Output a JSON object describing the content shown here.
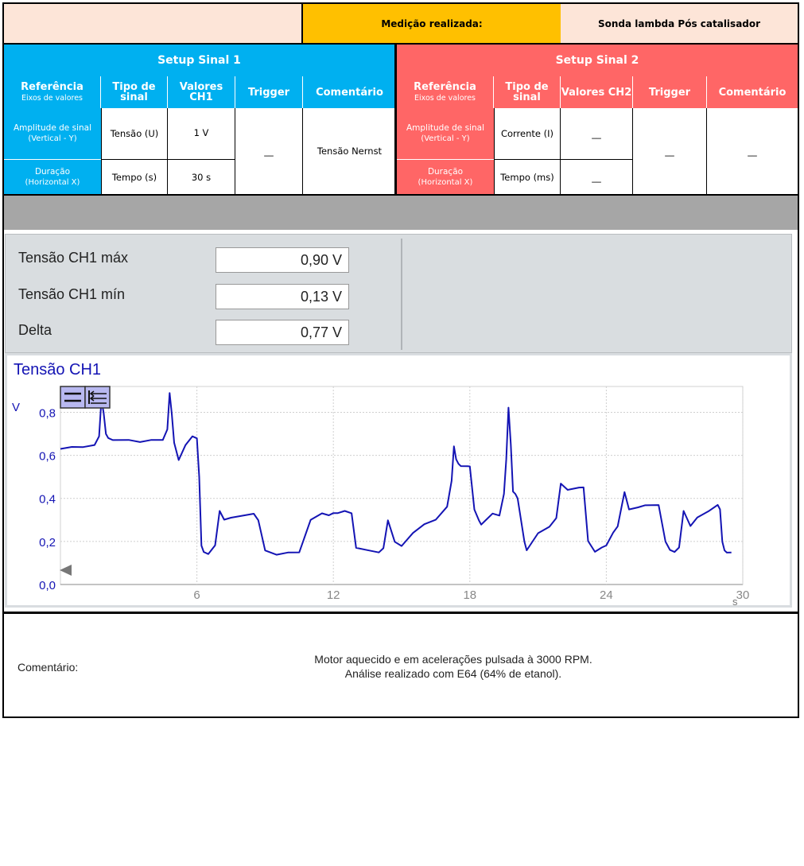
{
  "header": {
    "measurement_label": "Medição realizada:",
    "measurement_value": "Sonda lambda Pós catalisador"
  },
  "setup1": {
    "title": "Setup Sinal 1",
    "columns": {
      "ref_title": "Referência",
      "ref_sub": "Eixos de valores",
      "type": "Tipo de sinal",
      "values": "Valores CH1",
      "trigger": "Trigger",
      "comment": "Comentário"
    },
    "rows": [
      {
        "label": "Amplitude de sinal",
        "sub": "(Vertical - Y)",
        "type": "Tensão (U)",
        "value": "1 V"
      },
      {
        "label": "Duração",
        "sub": "(Horizontal X)",
        "type": "Tempo (s)",
        "value": "30 s"
      }
    ],
    "trigger": "__",
    "comment": "Tensão Nernst"
  },
  "setup2": {
    "title": "Setup Sinal 2",
    "columns": {
      "ref_title": "Referência",
      "ref_sub": "Eixos de valores",
      "type": "Tipo de sinal",
      "values": "Valores CH2",
      "trigger": "Trigger",
      "comment": "Comentário"
    },
    "rows": [
      {
        "label": "Amplitude de sinal",
        "sub": "(Vertical - Y)",
        "type": "Corrente (I)",
        "value": "__"
      },
      {
        "label": "Duração",
        "sub": "(Horizontal X)",
        "type": "Tempo (ms)",
        "value": "__"
      }
    ],
    "trigger": "__",
    "comment": "__"
  },
  "measurements": [
    {
      "label": "Tensão CH1 máx",
      "value": "0,90 V"
    },
    {
      "label": "Tensão CH1 mín",
      "value": "0,13 V"
    },
    {
      "label": "Delta",
      "value": "0,77 V"
    }
  ],
  "chart_data": {
    "type": "line",
    "title": "Tensão CH1",
    "ylabel": "V",
    "xlabel": "s",
    "xlim": [
      0,
      30
    ],
    "ylim": [
      0,
      0.92
    ],
    "xticks": [
      "6",
      "12",
      "18",
      "24",
      "30"
    ],
    "yticks": [
      "0,0",
      "0,2",
      "0,4",
      "0,6",
      "0,8"
    ],
    "grid": true,
    "line_color": "#1414B4",
    "series": [
      {
        "x": [
          0,
          0.5,
          1,
          1.5,
          1.7,
          1.8,
          1.9,
          2.0,
          2.1,
          2.3,
          3,
          3.5,
          4,
          4.5,
          4.7,
          4.8,
          4.9,
          5.0,
          5.2,
          5.5,
          5.8,
          6.0,
          6.1,
          6.2,
          6.3,
          6.5,
          6.8,
          7.0,
          7.2,
          7.5,
          8.0,
          8.5,
          8.7,
          9.0,
          9.5,
          10.0,
          10.5,
          11.0,
          11.5,
          11.8,
          12.0,
          12.2,
          12.5,
          12.8,
          13.0,
          13.5,
          14.0,
          14.2,
          14.4,
          14.7,
          15.0,
          15.5,
          16.0,
          16.5,
          17.0,
          17.2,
          17.3,
          17.4,
          17.5,
          17.6,
          17.9,
          18.0,
          18.2,
          18.4,
          18.5,
          18.7,
          19.0,
          19.3,
          19.5,
          19.6,
          19.7,
          19.8,
          19.9,
          20.0,
          20.1,
          20.4,
          20.5,
          21.0,
          21.5,
          21.8,
          22.0,
          22.3,
          22.8,
          23.0,
          23.2,
          23.5,
          23.8,
          24.0,
          24.3,
          24.5,
          24.8,
          25.0,
          25.4,
          25.7,
          26.0,
          26.3,
          26.6,
          26.8,
          27.0,
          27.2,
          27.4,
          27.7,
          28.0,
          28.5,
          28.9,
          29.0,
          29.1,
          29.2,
          29.3,
          29.5
        ],
        "y": [
          0.63,
          0.64,
          0.64,
          0.65,
          0.69,
          0.86,
          0.8,
          0.7,
          0.68,
          0.67,
          0.67,
          0.66,
          0.67,
          0.67,
          0.72,
          0.89,
          0.79,
          0.66,
          0.58,
          0.65,
          0.69,
          0.68,
          0.5,
          0.18,
          0.15,
          0.14,
          0.18,
          0.34,
          0.3,
          0.31,
          0.32,
          0.33,
          0.3,
          0.16,
          0.14,
          0.15,
          0.15,
          0.3,
          0.33,
          0.32,
          0.33,
          0.33,
          0.34,
          0.33,
          0.17,
          0.16,
          0.15,
          0.17,
          0.3,
          0.2,
          0.18,
          0.24,
          0.28,
          0.3,
          0.36,
          0.48,
          0.64,
          0.58,
          0.56,
          0.55,
          0.55,
          0.55,
          0.35,
          0.3,
          0.28,
          0.3,
          0.33,
          0.32,
          0.42,
          0.58,
          0.82,
          0.65,
          0.43,
          0.42,
          0.4,
          0.2,
          0.16,
          0.24,
          0.27,
          0.31,
          0.47,
          0.44,
          0.45,
          0.45,
          0.2,
          0.15,
          0.17,
          0.18,
          0.24,
          0.27,
          0.43,
          0.35,
          0.36,
          0.37,
          0.37,
          0.37,
          0.2,
          0.16,
          0.15,
          0.17,
          0.34,
          0.27,
          0.31,
          0.34,
          0.37,
          0.35,
          0.2,
          0.16,
          0.15,
          0.15
        ]
      }
    ]
  },
  "comment": {
    "label": "Comentário:",
    "line1": "Motor aquecido e em acelerações pulsada à 3000 RPM.",
    "line2": "Análise realizado com E64 (64% de etanol)."
  }
}
